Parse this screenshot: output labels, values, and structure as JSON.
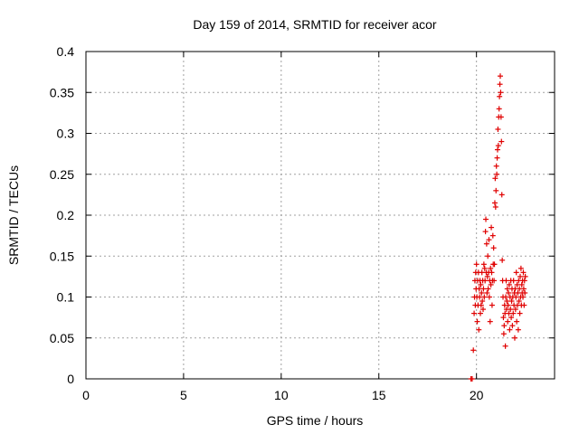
{
  "chart_data": {
    "type": "scatter",
    "title": "Day 159 of 2014, SRMTID for receiver acor",
    "xlabel": "GPS time / hours",
    "ylabel": "SRMTID / TECUs",
    "xlim": [
      0,
      24
    ],
    "ylim": [
      0,
      0.4
    ],
    "xticks": [
      0,
      5,
      10,
      15,
      20
    ],
    "xtick_labels": [
      "0",
      "5",
      "10",
      "15",
      "20"
    ],
    "yticks": [
      0,
      0.05,
      0.1,
      0.15,
      0.2,
      0.25,
      0.3,
      0.35,
      0.4
    ],
    "ytick_labels": [
      "0",
      "0.05",
      "0.1",
      "0.15",
      "0.2",
      "0.25",
      "0.3",
      "0.35",
      "0.4"
    ],
    "grid": true,
    "marker": "+",
    "color": "#e00000",
    "series": [
      {
        "name": "acor",
        "points": [
          [
            19.72,
            0.0
          ],
          [
            19.78,
            0.0
          ],
          [
            19.84,
            0.035
          ],
          [
            19.88,
            0.08
          ],
          [
            19.9,
            0.1
          ],
          [
            19.92,
            0.12
          ],
          [
            19.94,
            0.09
          ],
          [
            19.96,
            0.13
          ],
          [
            19.98,
            0.11
          ],
          [
            20.0,
            0.14
          ],
          [
            20.02,
            0.1
          ],
          [
            20.04,
            0.07
          ],
          [
            20.06,
            0.12
          ],
          [
            20.08,
            0.09
          ],
          [
            20.1,
            0.13
          ],
          [
            20.12,
            0.06
          ],
          [
            20.14,
            0.11
          ],
          [
            20.16,
            0.1
          ],
          [
            20.18,
            0.12
          ],
          [
            20.2,
            0.08
          ],
          [
            20.22,
            0.115
          ],
          [
            20.24,
            0.09
          ],
          [
            20.26,
            0.105
          ],
          [
            20.28,
            0.13
          ],
          [
            20.3,
            0.095
          ],
          [
            20.32,
            0.12
          ],
          [
            20.34,
            0.085
          ],
          [
            20.36,
            0.11
          ],
          [
            20.38,
            0.14
          ],
          [
            20.4,
            0.1
          ],
          [
            20.42,
            0.135
          ],
          [
            20.44,
            0.12
          ],
          [
            20.46,
            0.18
          ],
          [
            20.48,
            0.195
          ],
          [
            20.5,
            0.13
          ],
          [
            20.52,
            0.165
          ],
          [
            20.54,
            0.105
          ],
          [
            20.56,
            0.125
          ],
          [
            20.58,
            0.15
          ],
          [
            20.6,
            0.11
          ],
          [
            20.62,
            0.13
          ],
          [
            20.64,
            0.17
          ],
          [
            20.66,
            0.1
          ],
          [
            20.68,
            0.12
          ],
          [
            20.7,
            0.07
          ],
          [
            20.72,
            0.135
          ],
          [
            20.74,
            0.115
          ],
          [
            20.76,
            0.185
          ],
          [
            20.78,
            0.13
          ],
          [
            20.8,
            0.09
          ],
          [
            20.82,
            0.12
          ],
          [
            20.84,
            0.175
          ],
          [
            20.86,
            0.14
          ],
          [
            20.88,
            0.16
          ],
          [
            20.9,
            0.12
          ],
          [
            20.92,
            0.14
          ],
          [
            20.94,
            0.215
          ],
          [
            20.96,
            0.245
          ],
          [
            20.98,
            0.21
          ],
          [
            21.0,
            0.23
          ],
          [
            21.02,
            0.26
          ],
          [
            21.04,
            0.25
          ],
          [
            21.06,
            0.27
          ],
          [
            21.08,
            0.28
          ],
          [
            21.1,
            0.305
          ],
          [
            21.12,
            0.285
          ],
          [
            21.14,
            0.32
          ],
          [
            21.16,
            0.33
          ],
          [
            21.18,
            0.345
          ],
          [
            21.2,
            0.36
          ],
          [
            21.22,
            0.37
          ],
          [
            21.24,
            0.35
          ],
          [
            21.26,
            0.32
          ],
          [
            21.28,
            0.29
          ],
          [
            21.3,
            0.225
          ],
          [
            21.32,
            0.145
          ],
          [
            21.34,
            0.12
          ],
          [
            21.36,
            0.1
          ],
          [
            21.38,
            0.075
          ],
          [
            21.4,
            0.055
          ],
          [
            21.42,
            0.065
          ],
          [
            21.44,
            0.09
          ],
          [
            21.46,
            0.08
          ],
          [
            21.48,
            0.04
          ],
          [
            21.5,
            0.1
          ],
          [
            21.52,
            0.12
          ],
          [
            21.54,
            0.085
          ],
          [
            21.56,
            0.095
          ],
          [
            21.58,
            0.11
          ],
          [
            21.6,
            0.07
          ],
          [
            21.62,
            0.09
          ],
          [
            21.64,
            0.105
          ],
          [
            21.66,
            0.08
          ],
          [
            21.68,
            0.115
          ],
          [
            21.7,
            0.06
          ],
          [
            21.72,
            0.1
          ],
          [
            21.74,
            0.085
          ],
          [
            21.76,
            0.12
          ],
          [
            21.78,
            0.075
          ],
          [
            21.8,
            0.095
          ],
          [
            21.82,
            0.11
          ],
          [
            21.84,
            0.065
          ],
          [
            21.86,
            0.1
          ],
          [
            21.88,
            0.08
          ],
          [
            21.9,
            0.12
          ],
          [
            21.92,
            0.09
          ],
          [
            21.94,
            0.105
          ],
          [
            21.96,
            0.05
          ],
          [
            21.98,
            0.11
          ],
          [
            22.0,
            0.085
          ],
          [
            22.02,
            0.1
          ],
          [
            22.04,
            0.13
          ],
          [
            22.06,
            0.07
          ],
          [
            22.08,
            0.115
          ],
          [
            22.1,
            0.09
          ],
          [
            22.12,
            0.105
          ],
          [
            22.14,
            0.06
          ],
          [
            22.16,
            0.12
          ],
          [
            22.18,
            0.095
          ],
          [
            22.2,
            0.11
          ],
          [
            22.22,
            0.08
          ],
          [
            22.24,
            0.125
          ],
          [
            22.26,
            0.1
          ],
          [
            22.28,
            0.135
          ],
          [
            22.3,
            0.09
          ],
          [
            22.32,
            0.115
          ],
          [
            22.34,
            0.105
          ],
          [
            22.36,
            0.12
          ],
          [
            22.38,
            0.1
          ],
          [
            22.4,
            0.13
          ],
          [
            22.42,
            0.11
          ],
          [
            22.44,
            0.09
          ],
          [
            22.46,
            0.12
          ],
          [
            22.48,
            0.105
          ],
          [
            22.5,
            0.125
          ]
        ]
      }
    ]
  }
}
